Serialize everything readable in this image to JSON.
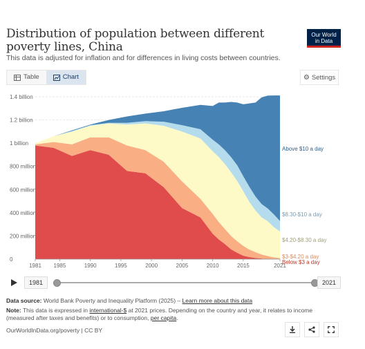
{
  "header": {
    "title": "Distribution of population between different poverty lines, China",
    "subtitle": "This data is adjusted for inflation and for differences in living costs between countries.",
    "logo_line1": "Our World",
    "logo_line2": "in Data"
  },
  "tabs": [
    {
      "label": "Table",
      "icon": "table-icon"
    },
    {
      "label": "Chart",
      "icon": "chart-icon"
    }
  ],
  "settings_label": "Settings",
  "timeline": {
    "start": "1981",
    "end": "2021"
  },
  "footer": {
    "source_label": "Data source:",
    "source_text": "World Bank Poverty and Inequality Platform (2025) –",
    "source_link": "Learn more about this data",
    "note_label": "Note:",
    "note_text1": "This data is expressed in",
    "note_link1": "international-$",
    "note_text2": "at 2021 prices. Depending on the country and year, it relates to income (measured after taxes and benefits) or to consumption,",
    "note_link2": "per capita",
    "note_end": ".",
    "url": "OurWorldInData.org/poverty | CC BY"
  },
  "colors": {
    "below3": "#e04b4b",
    "b3_420": "#f9ae83",
    "b420_830": "#fdfac8",
    "b830_10": "#b5dced",
    "above10": "#4682b4"
  },
  "chart_data": {
    "type": "area",
    "stacked": true,
    "x": [
      1981,
      1984,
      1987,
      1990,
      1993,
      1996,
      1999,
      2002,
      2005,
      2008,
      2010,
      2011,
      2012,
      2013,
      2014,
      2015,
      2016,
      2017,
      2018,
      2019,
      2020,
      2021
    ],
    "series": [
      {
        "name": "Below $3 a day",
        "color": "#e04b4b",
        "values": [
          980,
          960,
          890,
          940,
          900,
          760,
          740,
          620,
          440,
          360,
          220,
          170,
          130,
          85,
          55,
          30,
          18,
          10,
          5,
          2,
          1,
          1
        ]
      },
      {
        "name": "$3-$4.20 a day",
        "color": "#f9ae83",
        "values": [
          10,
          50,
          100,
          110,
          150,
          220,
          200,
          220,
          230,
          160,
          170,
          150,
          130,
          115,
          100,
          85,
          65,
          50,
          35,
          25,
          15,
          8
        ]
      },
      {
        "name": "$4.20-$8.30 a day",
        "color": "#fdfac8",
        "values": [
          8,
          50,
          110,
          100,
          120,
          180,
          230,
          310,
          430,
          520,
          540,
          560,
          560,
          550,
          520,
          470,
          410,
          360,
          320,
          300,
          260,
          230
        ]
      },
      {
        "name": "$8.30-$10 a day",
        "color": "#b5dced",
        "values": [
          0,
          0,
          5,
          5,
          5,
          15,
          20,
          35,
          55,
          80,
          100,
          110,
          120,
          130,
          135,
          130,
          130,
          120,
          115,
          110,
          110,
          90
        ]
      },
      {
        "name": "Above $10 a day",
        "color": "#4682b4",
        "values": [
          0,
          0,
          5,
          5,
          25,
          55,
          65,
          90,
          150,
          210,
          290,
          360,
          410,
          475,
          540,
          620,
          720,
          810,
          920,
          973,
          1025,
          1082
        ]
      }
    ],
    "legend_labels": [
      "Above $10 a day",
      "$8.30-$10 a day",
      "$4.20-$8.30 a day",
      "$3-$4.20 a day",
      "Below $3 a day"
    ],
    "y_ticks": [
      "0",
      "200 million",
      "400 million",
      "600 million",
      "800 million",
      "1 billion",
      "1.2 billion",
      "1.4 billion"
    ],
    "y_tick_values": [
      0,
      200,
      400,
      600,
      800,
      1000,
      1200,
      1400
    ],
    "x_ticks": [
      1981,
      1985,
      1990,
      1995,
      2000,
      2005,
      2010,
      2015,
      2021
    ],
    "ylim": [
      0,
      1400
    ],
    "xlim": [
      1981,
      2021
    ],
    "y_unit": "million",
    "grid": true,
    "legend_position": "right"
  }
}
